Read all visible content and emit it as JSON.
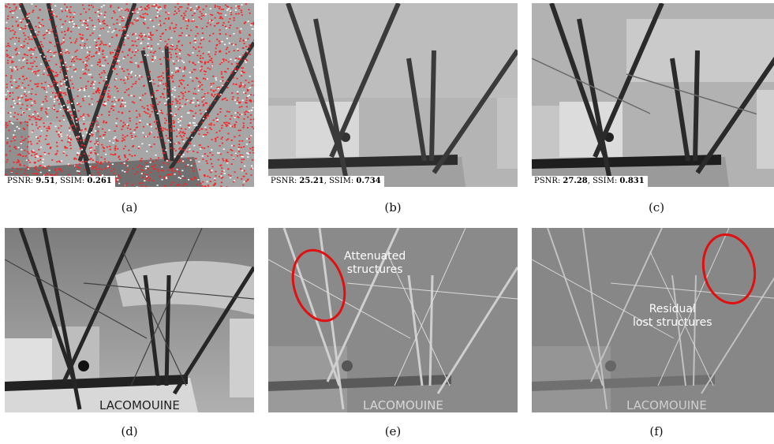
{
  "panels": {
    "a": {
      "caption": "(a)",
      "psnr_label": "PSNR:",
      "psnr_value": "9.51",
      "ssim_label": ", SSIM:",
      "ssim_value": "0.261"
    },
    "b": {
      "caption": "(b)",
      "psnr_label": "PSNR:",
      "psnr_value": "25.21",
      "ssim_label": ", SSIM:",
      "ssim_value": "0.734"
    },
    "c": {
      "caption": "(c)",
      "psnr_label": "PSNR:",
      "psnr_value": "27.28",
      "ssim_label": ", SSIM:",
      "ssim_value": "0.831"
    },
    "d": {
      "caption": "(d)",
      "boat_text": "LACOMOUINE"
    },
    "e": {
      "caption": "(e)",
      "annotation_line1": "Attenuated",
      "annotation_line2": "structures",
      "boat_text": "LACOMOUINE"
    },
    "f": {
      "caption": "(f)",
      "annotation_line1": "Residual",
      "annotation_line2": "lost structures",
      "boat_text": "LACOMOUINE"
    }
  },
  "colors": {
    "noise": "#ff2020",
    "ellipse": "#e01010",
    "annotation_text": "#ffffff"
  }
}
